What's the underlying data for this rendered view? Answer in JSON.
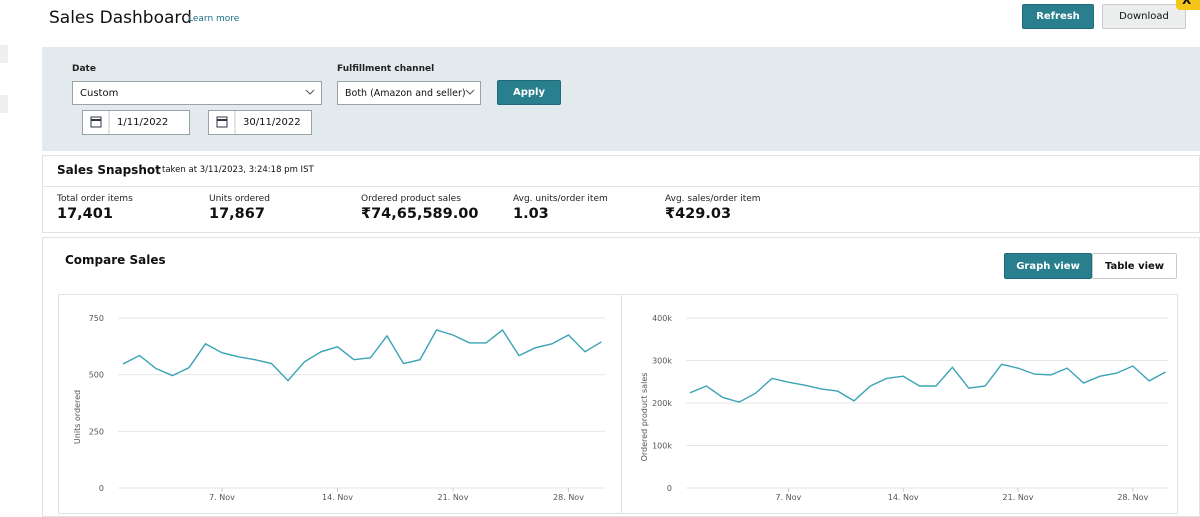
{
  "header": {
    "title": "Sales Dashboard",
    "link": "Learn more",
    "buttons": [
      "Refresh",
      "Download"
    ],
    "close": "X"
  },
  "filters": {
    "date_label": "Date",
    "date_range": "Custom",
    "start": "1/11/2022",
    "end": "30/11/2022",
    "channel_label": "Fulfillment channel",
    "channel": "Both (Amazon and seller)",
    "apply": "Apply"
  },
  "snapshot": {
    "title": "Sales Snapshot",
    "timestamp": "taken at 3/11/2023, 3:24:18 pm IST",
    "metrics": [
      {
        "label": "Total order items",
        "value": "17,401"
      },
      {
        "label": "Units ordered",
        "value": "17,867"
      },
      {
        "label": "Ordered product sales",
        "value": "₹74,65,589.00"
      },
      {
        "label": "Avg. units/order item",
        "value": "1.03"
      },
      {
        "label": "Avg. sales/order item",
        "value": "₹429.03"
      }
    ]
  },
  "compare": {
    "title": "Compare Sales",
    "views": [
      "Graph view",
      "Table view"
    ]
  },
  "chart_data": [
    {
      "type": "line",
      "y_label": "Units ordered",
      "color": "#3aa3b5",
      "categories": [
        null,
        null,
        null,
        null,
        null,
        null,
        "7. Nov",
        null,
        null,
        null,
        null,
        null,
        null,
        "14. Nov",
        null,
        null,
        null,
        null,
        null,
        null,
        "21. Nov",
        null,
        null,
        null,
        null,
        null,
        null,
        "28. Nov",
        null,
        null
      ],
      "values": [
        547,
        585,
        527,
        496,
        531,
        636,
        597,
        579,
        566,
        549,
        474,
        557,
        601,
        623,
        566,
        575,
        671,
        549,
        566,
        697,
        675,
        640,
        640,
        697,
        584,
        619,
        636,
        675,
        601,
        645
      ],
      "ylim": [
        0,
        750
      ],
      "yticks": [
        0,
        250,
        500,
        750
      ],
      "grid": true
    },
    {
      "type": "line",
      "y_label": "Ordered product sales",
      "color": "#3aa3b5",
      "categories": [
        null,
        null,
        null,
        null,
        null,
        null,
        "7. Nov",
        null,
        null,
        null,
        null,
        null,
        null,
        "14. Nov",
        null,
        null,
        null,
        null,
        null,
        null,
        "21. Nov",
        null,
        null,
        null,
        null,
        null,
        null,
        "28. Nov",
        null,
        null
      ],
      "values": [
        224000,
        240000,
        213000,
        202000,
        223000,
        258000,
        249000,
        242000,
        233000,
        228000,
        205000,
        240000,
        258000,
        263000,
        240000,
        240000,
        284000,
        235000,
        240000,
        291000,
        282000,
        268000,
        266000,
        282000,
        247000,
        263000,
        270000,
        287000,
        252000,
        273000
      ],
      "ylim": [
        0,
        400000
      ],
      "yticks": [
        0,
        {
          "value": 100000,
          "label": "100k"
        },
        {
          "value": 200000,
          "label": "200k"
        },
        {
          "value": 300000,
          "label": "300k"
        },
        {
          "value": 400000,
          "label": "400k"
        }
      ],
      "grid": true
    }
  ]
}
